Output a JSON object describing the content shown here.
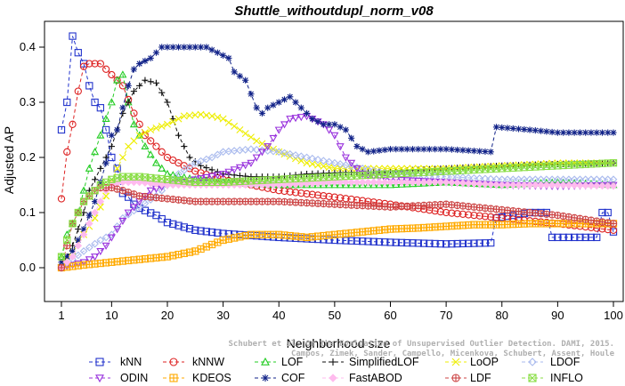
{
  "chart_data": {
    "type": "line",
    "title": "Shuttle_withoutdupl_norm_v08",
    "xlabel": "Neighborhood size",
    "ylabel": "Adjusted AP",
    "xlim": [
      1,
      100
    ],
    "ylim": [
      -0.03,
      0.44
    ],
    "x_ticks": [
      "1",
      "10",
      "20",
      "30",
      "40",
      "50",
      "60",
      "70",
      "80",
      "90",
      "100"
    ],
    "y_ticks": [
      "0.0",
      "0.1",
      "0.2",
      "0.3",
      "0.4"
    ],
    "legend_position": "bottom",
    "watermark": [
      "Schubert et al. On the Evaluation of Unsupervised Outlier Detection. DAMI, 2015.",
      "Campos, Zimek, Sander, Campello, Micenkova, Schubert, Assent, Houle"
    ],
    "series": [
      {
        "name": "kNN",
        "color": "#2233cc",
        "marker": "square",
        "dash": "4,3",
        "points": [
          [
            1,
            0.25
          ],
          [
            2,
            0.3
          ],
          [
            3,
            0.42
          ],
          [
            4,
            0.39
          ],
          [
            5,
            0.37
          ],
          [
            6,
            0.33
          ],
          [
            7,
            0.3
          ],
          [
            8,
            0.29
          ],
          [
            9,
            0.25
          ],
          [
            10,
            0.2
          ],
          [
            11,
            0.18
          ],
          [
            12,
            0.135
          ],
          [
            13,
            0.128
          ],
          [
            14,
            0.115
          ],
          [
            15,
            0.108
          ],
          [
            18,
            0.095
          ],
          [
            20,
            0.082
          ],
          [
            25,
            0.068
          ],
          [
            30,
            0.062
          ],
          [
            40,
            0.055
          ],
          [
            50,
            0.05
          ],
          [
            60,
            0.046
          ],
          [
            70,
            0.043
          ],
          [
            78,
            0.045
          ],
          [
            79,
            0.09
          ],
          [
            85,
            0.1
          ],
          [
            88,
            0.1
          ],
          [
            89,
            0.055
          ],
          [
            95,
            0.055
          ],
          [
            97,
            0.055
          ],
          [
            98,
            0.1
          ],
          [
            99,
            0.1
          ],
          [
            100,
            0.065
          ]
        ]
      },
      {
        "name": "kNNW",
        "color": "#dd2222",
        "marker": "circle",
        "dash": "4,3",
        "points": [
          [
            1,
            0.125
          ],
          [
            2,
            0.21
          ],
          [
            3,
            0.26
          ],
          [
            4,
            0.32
          ],
          [
            5,
            0.365
          ],
          [
            6,
            0.37
          ],
          [
            7,
            0.37
          ],
          [
            8,
            0.37
          ],
          [
            10,
            0.35
          ],
          [
            12,
            0.33
          ],
          [
            14,
            0.28
          ],
          [
            16,
            0.24
          ],
          [
            18,
            0.22
          ],
          [
            20,
            0.2
          ],
          [
            25,
            0.175
          ],
          [
            30,
            0.16
          ],
          [
            40,
            0.14
          ],
          [
            50,
            0.128
          ],
          [
            60,
            0.115
          ],
          [
            70,
            0.1
          ],
          [
            80,
            0.09
          ],
          [
            90,
            0.08
          ],
          [
            100,
            0.068
          ]
        ]
      },
      {
        "name": "LOF",
        "color": "#22cc22",
        "marker": "triangle",
        "dash": "4,3",
        "points": [
          [
            1,
            0.02
          ],
          [
            2,
            0.06
          ],
          [
            3,
            0.08
          ],
          [
            4,
            0.1
          ],
          [
            5,
            0.14
          ],
          [
            6,
            0.18
          ],
          [
            7,
            0.21
          ],
          [
            8,
            0.24
          ],
          [
            9,
            0.27
          ],
          [
            10,
            0.3
          ],
          [
            11,
            0.34
          ],
          [
            12,
            0.35
          ],
          [
            13,
            0.3
          ],
          [
            14,
            0.26
          ],
          [
            15,
            0.24
          ],
          [
            16,
            0.22
          ],
          [
            18,
            0.19
          ],
          [
            20,
            0.17
          ],
          [
            25,
            0.16
          ],
          [
            30,
            0.155
          ],
          [
            40,
            0.15
          ],
          [
            50,
            0.15
          ],
          [
            60,
            0.15
          ],
          [
            70,
            0.155
          ],
          [
            80,
            0.15
          ],
          [
            90,
            0.155
          ],
          [
            100,
            0.15
          ]
        ]
      },
      {
        "name": "SimplifiedLOF",
        "color": "#111111",
        "marker": "plus",
        "dash": "4,3",
        "points": [
          [
            1,
            0.0
          ],
          [
            2,
            0.02
          ],
          [
            3,
            0.04
          ],
          [
            4,
            0.07
          ],
          [
            5,
            0.1
          ],
          [
            6,
            0.14
          ],
          [
            7,
            0.16
          ],
          [
            8,
            0.18
          ],
          [
            10,
            0.22
          ],
          [
            12,
            0.28
          ],
          [
            14,
            0.32
          ],
          [
            16,
            0.34
          ],
          [
            18,
            0.335
          ],
          [
            20,
            0.3
          ],
          [
            22,
            0.24
          ],
          [
            24,
            0.2
          ],
          [
            26,
            0.185
          ],
          [
            30,
            0.17
          ],
          [
            35,
            0.165
          ],
          [
            40,
            0.165
          ],
          [
            45,
            0.17
          ],
          [
            50,
            0.172
          ],
          [
            60,
            0.175
          ],
          [
            70,
            0.18
          ],
          [
            80,
            0.185
          ],
          [
            90,
            0.188
          ],
          [
            100,
            0.19
          ]
        ]
      },
      {
        "name": "LoOP",
        "color": "#eeee00",
        "marker": "cross",
        "dash": "4,3",
        "points": [
          [
            1,
            0.0
          ],
          [
            3,
            0.03
          ],
          [
            5,
            0.06
          ],
          [
            7,
            0.09
          ],
          [
            9,
            0.13
          ],
          [
            11,
            0.18
          ],
          [
            13,
            0.22
          ],
          [
            15,
            0.24
          ],
          [
            17,
            0.25
          ],
          [
            20,
            0.26
          ],
          [
            23,
            0.275
          ],
          [
            26,
            0.278
          ],
          [
            28,
            0.275
          ],
          [
            30,
            0.27
          ],
          [
            33,
            0.25
          ],
          [
            36,
            0.23
          ],
          [
            40,
            0.21
          ],
          [
            45,
            0.19
          ],
          [
            50,
            0.18
          ],
          [
            60,
            0.18
          ],
          [
            70,
            0.18
          ],
          [
            80,
            0.185
          ],
          [
            90,
            0.19
          ],
          [
            100,
            0.19
          ]
        ]
      },
      {
        "name": "LDOF",
        "color": "#aabbee",
        "marker": "diamond",
        "dash": "4,3",
        "points": [
          [
            1,
            0.0
          ],
          [
            5,
            0.03
          ],
          [
            8,
            0.05
          ],
          [
            10,
            0.06
          ],
          [
            12,
            0.09
          ],
          [
            15,
            0.11
          ],
          [
            18,
            0.13
          ],
          [
            20,
            0.15
          ],
          [
            22,
            0.17
          ],
          [
            25,
            0.19
          ],
          [
            28,
            0.2
          ],
          [
            30,
            0.21
          ],
          [
            35,
            0.215
          ],
          [
            40,
            0.21
          ],
          [
            45,
            0.2
          ],
          [
            50,
            0.19
          ],
          [
            55,
            0.18
          ],
          [
            60,
            0.17
          ],
          [
            70,
            0.165
          ],
          [
            80,
            0.16
          ],
          [
            90,
            0.16
          ],
          [
            100,
            0.16
          ]
        ]
      },
      {
        "name": "ODIN",
        "color": "#9933dd",
        "marker": "triangle-down",
        "dash": "4,3",
        "points": [
          [
            1,
            0.0
          ],
          [
            3,
            0.005
          ],
          [
            5,
            0.01
          ],
          [
            7,
            0.02
          ],
          [
            9,
            0.04
          ],
          [
            11,
            0.07
          ],
          [
            13,
            0.1
          ],
          [
            15,
            0.12
          ],
          [
            17,
            0.14
          ],
          [
            20,
            0.15
          ],
          [
            25,
            0.16
          ],
          [
            30,
            0.17
          ],
          [
            35,
            0.19
          ],
          [
            38,
            0.22
          ],
          [
            40,
            0.25
          ],
          [
            42,
            0.27
          ],
          [
            45,
            0.275
          ],
          [
            48,
            0.26
          ],
          [
            50,
            0.24
          ],
          [
            52,
            0.2
          ],
          [
            55,
            0.17
          ],
          [
            60,
            0.16
          ],
          [
            70,
            0.155
          ],
          [
            80,
            0.15
          ],
          [
            90,
            0.148
          ],
          [
            100,
            0.15
          ]
        ]
      },
      {
        "name": "KDEOS",
        "color": "#ffaa00",
        "marker": "square-cross",
        "dash": "4,3",
        "points": [
          [
            1,
            0.0
          ],
          [
            5,
            0.005
          ],
          [
            10,
            0.01
          ],
          [
            15,
            0.015
          ],
          [
            20,
            0.02
          ],
          [
            25,
            0.03
          ],
          [
            30,
            0.05
          ],
          [
            35,
            0.06
          ],
          [
            40,
            0.06
          ],
          [
            45,
            0.055
          ],
          [
            50,
            0.06
          ],
          [
            55,
            0.065
          ],
          [
            60,
            0.07
          ],
          [
            65,
            0.072
          ],
          [
            70,
            0.075
          ],
          [
            75,
            0.078
          ],
          [
            80,
            0.078
          ],
          [
            85,
            0.08
          ],
          [
            90,
            0.08
          ],
          [
            100,
            0.08
          ]
        ]
      },
      {
        "name": "COF",
        "color": "#112288",
        "marker": "asterisk",
        "dash": "4,3",
        "points": [
          [
            1,
            0.01
          ],
          [
            3,
            0.03
          ],
          [
            5,
            0.07
          ],
          [
            7,
            0.12
          ],
          [
            9,
            0.19
          ],
          [
            10,
            0.24
          ],
          [
            11,
            0.25
          ],
          [
            12,
            0.29
          ],
          [
            13,
            0.33
          ],
          [
            14,
            0.36
          ],
          [
            15,
            0.37
          ],
          [
            17,
            0.38
          ],
          [
            19,
            0.4
          ],
          [
            21,
            0.4
          ],
          [
            24,
            0.4
          ],
          [
            27,
            0.4
          ],
          [
            29,
            0.39
          ],
          [
            31,
            0.38
          ],
          [
            32,
            0.355
          ],
          [
            34,
            0.34
          ],
          [
            36,
            0.29
          ],
          [
            37,
            0.28
          ],
          [
            38,
            0.29
          ],
          [
            40,
            0.3
          ],
          [
            42,
            0.31
          ],
          [
            44,
            0.29
          ],
          [
            46,
            0.27
          ],
          [
            48,
            0.26
          ],
          [
            50,
            0.26
          ],
          [
            52,
            0.25
          ],
          [
            54,
            0.22
          ],
          [
            56,
            0.21
          ],
          [
            60,
            0.215
          ],
          [
            70,
            0.215
          ],
          [
            78,
            0.21
          ],
          [
            79,
            0.255
          ],
          [
            85,
            0.25
          ],
          [
            90,
            0.245
          ],
          [
            100,
            0.245
          ]
        ]
      },
      {
        "name": "FastABOD",
        "color": "#ffbbee",
        "marker": "diamond-filled",
        "dash": "4,3",
        "points": [
          [
            1,
            0.0
          ],
          [
            3,
            0.02
          ],
          [
            5,
            0.06
          ],
          [
            7,
            0.1
          ],
          [
            9,
            0.14
          ],
          [
            10,
            0.15
          ],
          [
            12,
            0.155
          ],
          [
            15,
            0.155
          ],
          [
            20,
            0.15
          ],
          [
            30,
            0.15
          ],
          [
            40,
            0.15
          ],
          [
            50,
            0.155
          ],
          [
            60,
            0.155
          ],
          [
            70,
            0.155
          ],
          [
            80,
            0.15
          ],
          [
            90,
            0.15
          ],
          [
            100,
            0.148
          ]
        ]
      },
      {
        "name": "LDF",
        "color": "#cc4444",
        "marker": "circle-plus",
        "dash": "4,3",
        "points": [
          [
            1,
            0.0
          ],
          [
            2,
            0.04
          ],
          [
            3,
            0.08
          ],
          [
            4,
            0.1
          ],
          [
            5,
            0.12
          ],
          [
            6,
            0.13
          ],
          [
            7,
            0.14
          ],
          [
            8,
            0.145
          ],
          [
            10,
            0.145
          ],
          [
            12,
            0.14
          ],
          [
            15,
            0.13
          ],
          [
            20,
            0.125
          ],
          [
            25,
            0.12
          ],
          [
            30,
            0.12
          ],
          [
            40,
            0.12
          ],
          [
            50,
            0.115
          ],
          [
            60,
            0.11
          ],
          [
            70,
            0.115
          ],
          [
            80,
            0.105
          ],
          [
            90,
            0.095
          ],
          [
            100,
            0.08
          ]
        ]
      },
      {
        "name": "INFLO",
        "color": "#88dd44",
        "marker": "square-x",
        "dash": "4,3",
        "points": [
          [
            1,
            0.02
          ],
          [
            2,
            0.05
          ],
          [
            3,
            0.08
          ],
          [
            4,
            0.1
          ],
          [
            5,
            0.12
          ],
          [
            6,
            0.13
          ],
          [
            7,
            0.14
          ],
          [
            8,
            0.15
          ],
          [
            10,
            0.16
          ],
          [
            12,
            0.165
          ],
          [
            15,
            0.165
          ],
          [
            20,
            0.16
          ],
          [
            25,
            0.155
          ],
          [
            30,
            0.155
          ],
          [
            40,
            0.16
          ],
          [
            50,
            0.165
          ],
          [
            60,
            0.17
          ],
          [
            70,
            0.175
          ],
          [
            80,
            0.18
          ],
          [
            90,
            0.185
          ],
          [
            100,
            0.19
          ]
        ]
      }
    ]
  }
}
